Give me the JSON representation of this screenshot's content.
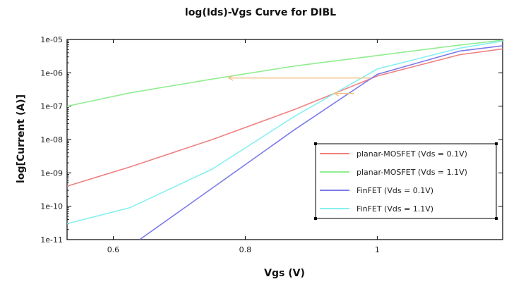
{
  "chart_data": {
    "type": "line",
    "title": "log(Ids)-Vgs Curve for DIBL",
    "xlabel": "Vgs (V)",
    "ylabel": "log[Current (A)]",
    "xlim": [
      0.53,
      1.19
    ],
    "ylim": [
      1e-11,
      1e-05
    ],
    "yscale": "log",
    "grid": false,
    "legend_position": "lower-right",
    "x_ticks": [
      0.6,
      0.8,
      1.0
    ],
    "x_tick_labels": [
      "0.6",
      "0.8",
      "1"
    ],
    "y_ticks": [
      1e-11,
      1e-10,
      1e-09,
      1e-08,
      1e-07,
      1e-06,
      1e-05
    ],
    "y_tick_labels": [
      "1e-11",
      "1e-10",
      "1e-09",
      "1e-08",
      "1e-07",
      "1e-06",
      "1e-05"
    ],
    "series": [
      {
        "name": "planar-MOSFET (Vds = 0.1V)",
        "color": "#f08080",
        "x": [
          0.53,
          0.625,
          0.75,
          0.875,
          1.0,
          1.125,
          1.19
        ],
        "y": [
          4e-10,
          1.5e-09,
          1e-08,
          8e-08,
          8e-07,
          3.5e-06,
          5.2e-06
        ]
      },
      {
        "name": "planar-MOSFET (Vds = 1.1V)",
        "color": "#90ee90",
        "x": [
          0.53,
          0.625,
          0.75,
          0.875,
          1.0,
          1.125,
          1.19
        ],
        "y": [
          1e-07,
          2.5e-07,
          6.5e-07,
          1.6e-06,
          3.3e-06,
          6.8e-06,
          9.5e-06
        ]
      },
      {
        "name": "FinFET (Vds = 0.1V)",
        "color": "#7b7bea",
        "x": [
          0.64,
          0.75,
          0.875,
          1.0,
          1.125,
          1.19
        ],
        "y": [
          1e-11,
          3.5e-10,
          2e-08,
          9e-07,
          4.5e-06,
          6.5e-06
        ]
      },
      {
        "name": "FinFET (Vds = 1.1V)",
        "color": "#87f0f0",
        "x": [
          0.53,
          0.625,
          0.75,
          0.875,
          1.0,
          1.125,
          1.19
        ],
        "y": [
          3e-11,
          9e-11,
          1.3e-09,
          5e-08,
          1.3e-06,
          5.5e-06,
          9e-06
        ]
      }
    ],
    "annotations": [
      {
        "type": "arrow",
        "color": "#f0c080",
        "x_from": 0.99,
        "y_from": 7e-07,
        "x_to": 0.775,
        "y_to": 7e-07
      },
      {
        "type": "arrow",
        "color": "#f0c080",
        "x_from": 0.965,
        "y_from": 2.4e-07,
        "x_to": 0.935,
        "y_to": 2.4e-07
      }
    ]
  }
}
